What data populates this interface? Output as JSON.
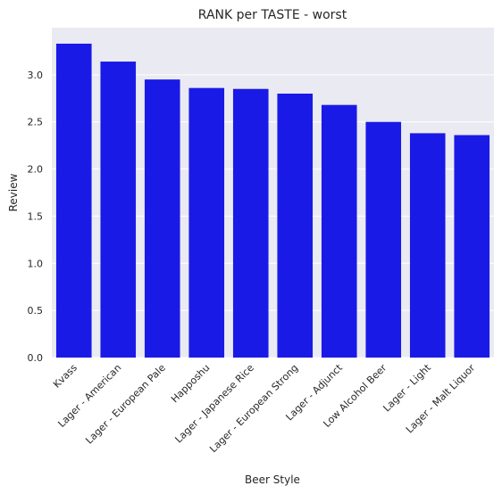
{
  "chart_data": {
    "type": "bar",
    "title": "RANK per TASTE - worst",
    "xlabel": "Beer Style",
    "ylabel": "Review",
    "categories": [
      "Kvass",
      "Lager - American",
      "Lager - European Pale",
      "Happoshu",
      "Lager - Japanese Rice",
      "Lager - European Strong",
      "Lager - Adjunct",
      "Low Alcohol Beer",
      "Lager - Light",
      "Lager - Malt Liquor"
    ],
    "values": [
      3.33,
      3.14,
      2.95,
      2.86,
      2.85,
      2.8,
      2.68,
      2.5,
      2.38,
      2.36
    ],
    "ylim": [
      0,
      3.5
    ],
    "yticks": [
      "0.0",
      "0.5",
      "1.0",
      "1.5",
      "2.0",
      "2.5",
      "3.0"
    ],
    "grid": true,
    "bar_color": "#1a1ae6",
    "background_color": "#eaeaf2"
  }
}
